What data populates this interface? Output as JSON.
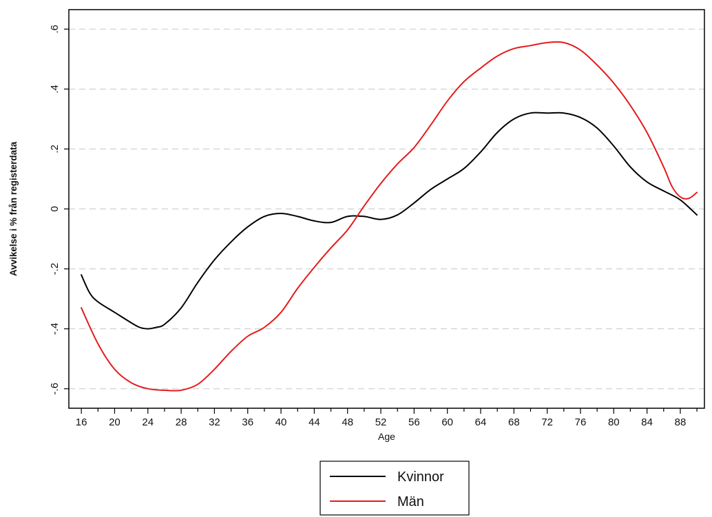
{
  "chart_data": {
    "type": "line",
    "xlabel": "Age",
    "ylabel": "Avvikelse i % från registerdata",
    "xlim": [
      14.5,
      90.9
    ],
    "ylim": [
      -0.665,
      0.665
    ],
    "x_ticks": [
      16,
      20,
      24,
      28,
      32,
      36,
      40,
      44,
      48,
      52,
      56,
      60,
      64,
      68,
      72,
      76,
      80,
      84,
      88
    ],
    "y_ticks": [
      {
        "value": -0.6,
        "label": "-.6"
      },
      {
        "value": -0.4,
        "label": "-.4"
      },
      {
        "value": -0.2,
        "label": "-.2"
      },
      {
        "value": 0,
        "label": "0"
      },
      {
        "value": 0.2,
        "label": ".2"
      },
      {
        "value": 0.4,
        "label": ".4"
      },
      {
        "value": 0.6,
        "label": ".6"
      }
    ],
    "grid": "horizontal dashed",
    "legend_position": "bottom-center",
    "series": [
      {
        "name": "Kvinnor",
        "color": "#000000",
        "x": [
          16,
          17,
          18,
          20,
          22,
          23,
          24,
          25,
          26,
          28,
          30,
          32,
          34,
          36,
          38,
          40,
          42,
          44,
          46,
          48,
          50,
          52,
          54,
          56,
          58,
          60,
          62,
          64,
          66,
          68,
          70,
          72,
          74,
          76,
          78,
          80,
          82,
          84,
          86,
          88,
          90
        ],
        "y": [
          -0.22,
          -0.28,
          -0.31,
          -0.345,
          -0.38,
          -0.395,
          -0.4,
          -0.395,
          -0.385,
          -0.33,
          -0.245,
          -0.17,
          -0.11,
          -0.06,
          -0.025,
          -0.015,
          -0.025,
          -0.04,
          -0.045,
          -0.025,
          -0.025,
          -0.035,
          -0.02,
          0.02,
          0.065,
          0.1,
          0.135,
          0.19,
          0.255,
          0.3,
          0.32,
          0.32,
          0.32,
          0.305,
          0.27,
          0.21,
          0.14,
          0.09,
          0.06,
          0.03,
          -0.02
        ]
      },
      {
        "name": "Män",
        "color": "#e41a1c",
        "x": [
          16,
          18,
          20,
          22,
          24,
          26,
          28,
          30,
          32,
          34,
          36,
          38,
          40,
          42,
          44,
          46,
          48,
          50,
          52,
          54,
          56,
          58,
          60,
          62,
          64,
          66,
          68,
          70,
          72,
          74,
          76,
          78,
          80,
          82,
          84,
          86,
          87,
          88,
          89,
          90
        ],
        "y": [
          -0.33,
          -0.45,
          -0.535,
          -0.58,
          -0.6,
          -0.605,
          -0.605,
          -0.585,
          -0.535,
          -0.475,
          -0.425,
          -0.395,
          -0.345,
          -0.265,
          -0.195,
          -0.13,
          -0.07,
          0.01,
          0.085,
          0.15,
          0.205,
          0.28,
          0.36,
          0.425,
          0.47,
          0.51,
          0.535,
          0.545,
          0.555,
          0.555,
          0.53,
          0.48,
          0.42,
          0.345,
          0.255,
          0.14,
          0.075,
          0.04,
          0.035,
          0.055
        ]
      }
    ]
  }
}
